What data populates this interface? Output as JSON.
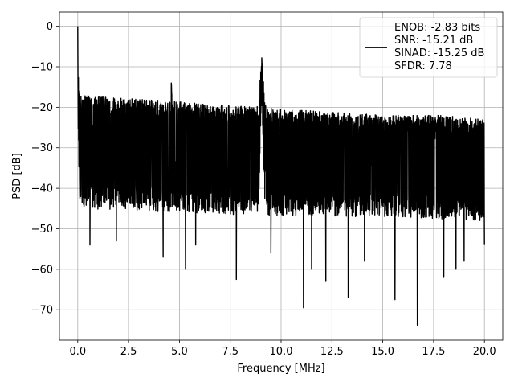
{
  "chart_data": {
    "type": "line",
    "title": "",
    "xlabel": "Frequency [MHz]",
    "ylabel": "PSD [dB]",
    "xlim": [
      -0.9,
      20.9
    ],
    "ylim": [
      -77.5,
      3.5
    ],
    "xticks": [
      0.0,
      2.5,
      5.0,
      7.5,
      10.0,
      12.5,
      15.0,
      17.5,
      20.0
    ],
    "xtick_labels": [
      "0.0",
      "2.5",
      "5.0",
      "7.5",
      "10.0",
      "12.5",
      "15.0",
      "17.5",
      "20.0"
    ],
    "yticks": [
      0,
      -10,
      -20,
      -30,
      -40,
      -50,
      -60,
      -70
    ],
    "ytick_labels": [
      "0",
      "−10",
      "−20",
      "−30",
      "−40",
      "−50",
      "−60",
      "−70"
    ],
    "grid": true,
    "legend_position": "top-right",
    "legend": [
      "ENOB: -2.83 bits",
      "SNR: -15.21 dB",
      "SINAD: -15.25 dB",
      "SFDR: 7.78"
    ],
    "series": [
      {
        "color": "#000000",
        "features": {
          "dc_peak": {
            "x": 0.0,
            "y": 0.0
          },
          "spur_peak": {
            "x": 9.05,
            "y": -7.8
          },
          "band_peak_4p6": {
            "x": 4.6,
            "y": -14.0
          },
          "upper_envelope": [
            [
              0.2,
              -17
            ],
            [
              3,
              -18
            ],
            [
              6,
              -19
            ],
            [
              9,
              -20
            ],
            [
              12,
              -21
            ],
            [
              15,
              -22
            ],
            [
              18,
              -22
            ],
            [
              20,
              -23
            ]
          ],
          "lower_envelope": [
            [
              0.2,
              -45
            ],
            [
              5,
              -46
            ],
            [
              10,
              -47
            ],
            [
              15,
              -47
            ],
            [
              20,
              -48
            ]
          ],
          "deep_notches": [
            [
              0.6,
              -54
            ],
            [
              1.9,
              -53
            ],
            [
              4.2,
              -57
            ],
            [
              5.3,
              -60
            ],
            [
              5.8,
              -54
            ],
            [
              7.8,
              -62.5
            ],
            [
              9.5,
              -56
            ],
            [
              11.1,
              -69.5
            ],
            [
              11.5,
              -60
            ],
            [
              12.2,
              -63
            ],
            [
              13.3,
              -67
            ],
            [
              14.1,
              -58
            ],
            [
              15.6,
              -67.5
            ],
            [
              16.7,
              -73.8
            ],
            [
              18.0,
              -62
            ],
            [
              18.6,
              -60
            ],
            [
              19.0,
              -58
            ],
            [
              20.0,
              -54
            ]
          ]
        }
      }
    ]
  }
}
